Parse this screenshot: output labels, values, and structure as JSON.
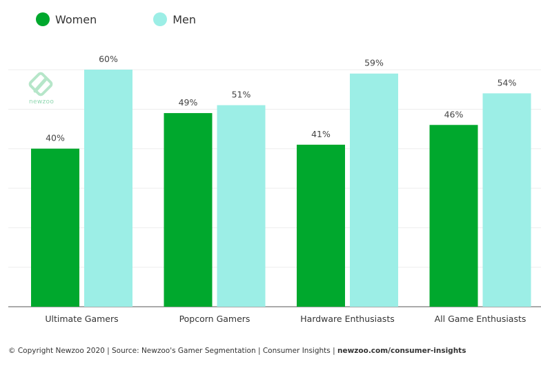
{
  "legend": [
    {
      "label": "Women",
      "color": "#00a82d"
    },
    {
      "label": "Men",
      "color": "#9ceee6"
    }
  ],
  "logo": {
    "text": "newzoo",
    "icon": "newzoo-logo-icon"
  },
  "footer": {
    "text": "© Copyright Newzoo 2020 | Source: Newzoo's Gamer Segmentation | Consumer Insights | ",
    "link": "newzoo.com/consumer-insights"
  },
  "chart_data": {
    "type": "bar",
    "categories": [
      "Ultimate Gamers",
      "Popcorn Gamers",
      "Hardware Enthusiasts",
      "All Game Enthusiasts"
    ],
    "series": [
      {
        "name": "Women",
        "values": [
          40,
          49,
          41,
          46
        ],
        "color": "#00a82d"
      },
      {
        "name": "Men",
        "values": [
          60,
          51,
          59,
          54
        ],
        "color": "#9ceee6"
      }
    ],
    "value_labels": [
      [
        "40%",
        "49%",
        "41%",
        "46%"
      ],
      [
        "60%",
        "51%",
        "59%",
        "54%"
      ]
    ],
    "ylim": [
      0,
      60
    ],
    "grid": true,
    "legend_position": "top-left"
  }
}
